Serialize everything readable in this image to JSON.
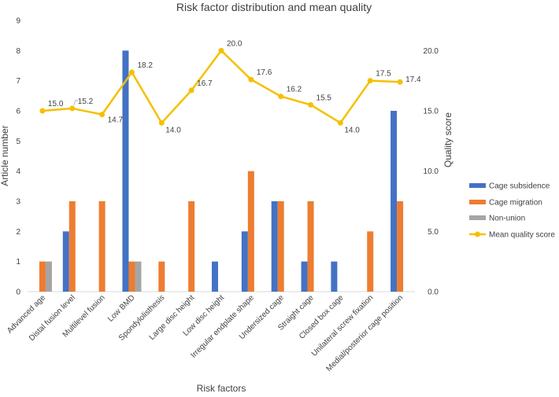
{
  "chart_data": {
    "type": "bar",
    "title": "Risk factor distribution and mean quality",
    "xlabel": "Risk factors",
    "ylabel": "Article number",
    "y2label": "Quality score",
    "ylim": [
      0,
      9
    ],
    "y2lim": [
      0,
      22.5
    ],
    "yticks": [
      "0",
      "1",
      "2",
      "3",
      "4",
      "5",
      "6",
      "7",
      "8",
      "9"
    ],
    "y2ticks": [
      "0.0",
      "5.0",
      "10.0",
      "15.0",
      "20.0"
    ],
    "categories": [
      "Advanced age",
      "Distal fusion level",
      "Multilevel fusion",
      "Low BMD",
      "Spondylolisthesis",
      "Large disc height",
      "Low disc height",
      "Irregular endplate shape",
      "Undersized cage",
      "Straight cage",
      "Closed box cage",
      "Unilateral screw fixation",
      "Medial/posterior cage position"
    ],
    "series": [
      {
        "name": "Cage subsidence",
        "type": "bar",
        "color": "#4472C4",
        "values": [
          0,
          2,
          0,
          8,
          0,
          0,
          1,
          2,
          3,
          1,
          1,
          0,
          6
        ]
      },
      {
        "name": "Cage migration",
        "type": "bar",
        "color": "#ED7D31",
        "values": [
          1,
          3,
          3,
          1,
          1,
          3,
          0,
          4,
          3,
          3,
          0,
          2,
          3
        ]
      },
      {
        "name": "Non-union",
        "type": "bar",
        "color": "#A5A5A5",
        "values": [
          1,
          0,
          0,
          1,
          0,
          0,
          0,
          0,
          0,
          0,
          0,
          0,
          0
        ]
      },
      {
        "name": "Mean quality score",
        "type": "line",
        "axis": "secondary",
        "color": "#F5C000",
        "values": [
          15.0,
          15.2,
          14.7,
          18.2,
          14.0,
          16.7,
          20.0,
          17.6,
          16.2,
          15.5,
          14.0,
          17.5,
          17.4
        ],
        "labels": [
          "15.0",
          "15.2",
          "14.7",
          "18.2",
          "14.0",
          "16.7",
          "20.0",
          "17.6",
          "16.2",
          "15.5",
          "14.0",
          "17.5",
          "17.4"
        ]
      }
    ],
    "grid": false,
    "legend_position": "right"
  }
}
